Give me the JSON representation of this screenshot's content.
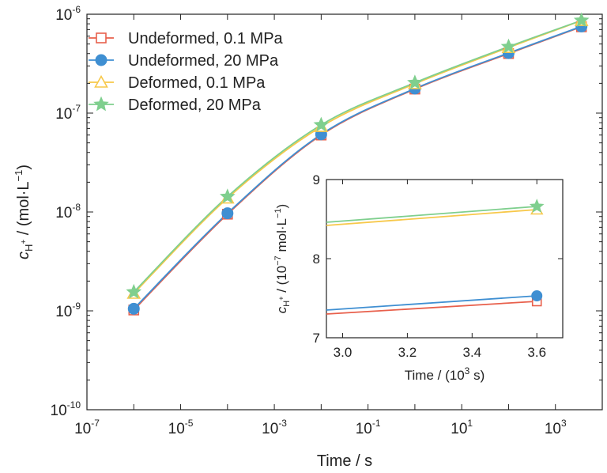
{
  "chart_data": [
    {
      "type": "line",
      "xlabel": "Time / s",
      "ylabel_parts": {
        "sym": "c",
        "sub": "H",
        "subsup": "+",
        "rest": " / (mol·L",
        "rest_sup": "−1",
        "close": ")"
      },
      "xscale": "log",
      "yscale": "log",
      "xlim": [
        1e-07,
        10000.0
      ],
      "ylim": [
        1e-10,
        1e-06
      ],
      "x_ticks": [
        {
          "base": "10",
          "exp": "-7"
        },
        {
          "base": "10",
          "exp": "-5"
        },
        {
          "base": "10",
          "exp": "-3"
        },
        {
          "base": "10",
          "exp": "-1"
        },
        {
          "base": "10",
          "exp": "1"
        },
        {
          "base": "10",
          "exp": "3"
        }
      ],
      "y_ticks": [
        {
          "base": "10",
          "exp": "-10"
        },
        {
          "base": "10",
          "exp": "-9"
        },
        {
          "base": "10",
          "exp": "-8"
        },
        {
          "base": "10",
          "exp": "-7"
        },
        {
          "base": "10",
          "exp": "-6"
        }
      ],
      "legend_position": "top-left",
      "x": [
        1e-06,
        0.0001,
        0.01,
        1,
        100,
        3600
      ],
      "series": [
        {
          "name": "Undeformed, 0.1 MPa",
          "color": "#e8604c",
          "marker": "open-square",
          "values": [
            1.02e-09,
            9.5e-09,
            6e-08,
            1.75e-07,
            4e-07,
            7.46e-07
          ]
        },
        {
          "name": "Undeformed, 20 MPa",
          "color": "#3f8fd2",
          "marker": "filled-circle",
          "values": [
            1.05e-09,
            9.7e-09,
            6.1e-08,
            1.77e-07,
            4.05e-07,
            7.53e-07
          ]
        },
        {
          "name": "Deformed, 0.1 MPa",
          "color": "#f7c84a",
          "marker": "open-triangle",
          "values": [
            1.5e-09,
            1.38e-08,
            7.3e-08,
            1.98e-07,
            4.6e-07,
            8.62e-07
          ]
        },
        {
          "name": "Deformed, 20 MPa",
          "color": "#7fcf8e",
          "marker": "filled-star",
          "values": [
            1.55e-09,
            1.43e-08,
            7.6e-08,
            2.03e-07,
            4.7e-07,
            8.66e-07
          ]
        }
      ]
    },
    {
      "type": "line",
      "xlabel_parts": {
        "pre": "Time / (10",
        "sup": "3",
        "post": " s)"
      },
      "ylabel_parts": {
        "sym": "c",
        "sub": "H",
        "subsup": "+",
        "rest": " / (10",
        "rest_sup": "−7",
        "mid": " mol·L",
        "mid_sup": "−1",
        "close": ")"
      },
      "xlim": [
        2.95,
        3.68
      ],
      "ylim": [
        7.0,
        9.0
      ],
      "x_ticks": [
        "3.0",
        "3.2",
        "3.4",
        "3.6"
      ],
      "y_ticks": [
        "7",
        "8",
        "9"
      ],
      "x": [
        2.95,
        3.6
      ],
      "series": [
        {
          "name": "Undeformed, 0.1 MPa",
          "color": "#e8604c",
          "marker": "open-square",
          "values": [
            7.3,
            7.46
          ]
        },
        {
          "name": "Undeformed, 20 MPa",
          "color": "#3f8fd2",
          "marker": "filled-circle",
          "values": [
            7.35,
            7.53
          ]
        },
        {
          "name": "Deformed, 0.1 MPa",
          "color": "#f7c84a",
          "marker": "open-triangle",
          "values": [
            8.42,
            8.62
          ]
        },
        {
          "name": "Deformed, 20 MPa",
          "color": "#7fcf8e",
          "marker": "filled-star",
          "values": [
            8.46,
            8.66
          ]
        }
      ]
    }
  ]
}
